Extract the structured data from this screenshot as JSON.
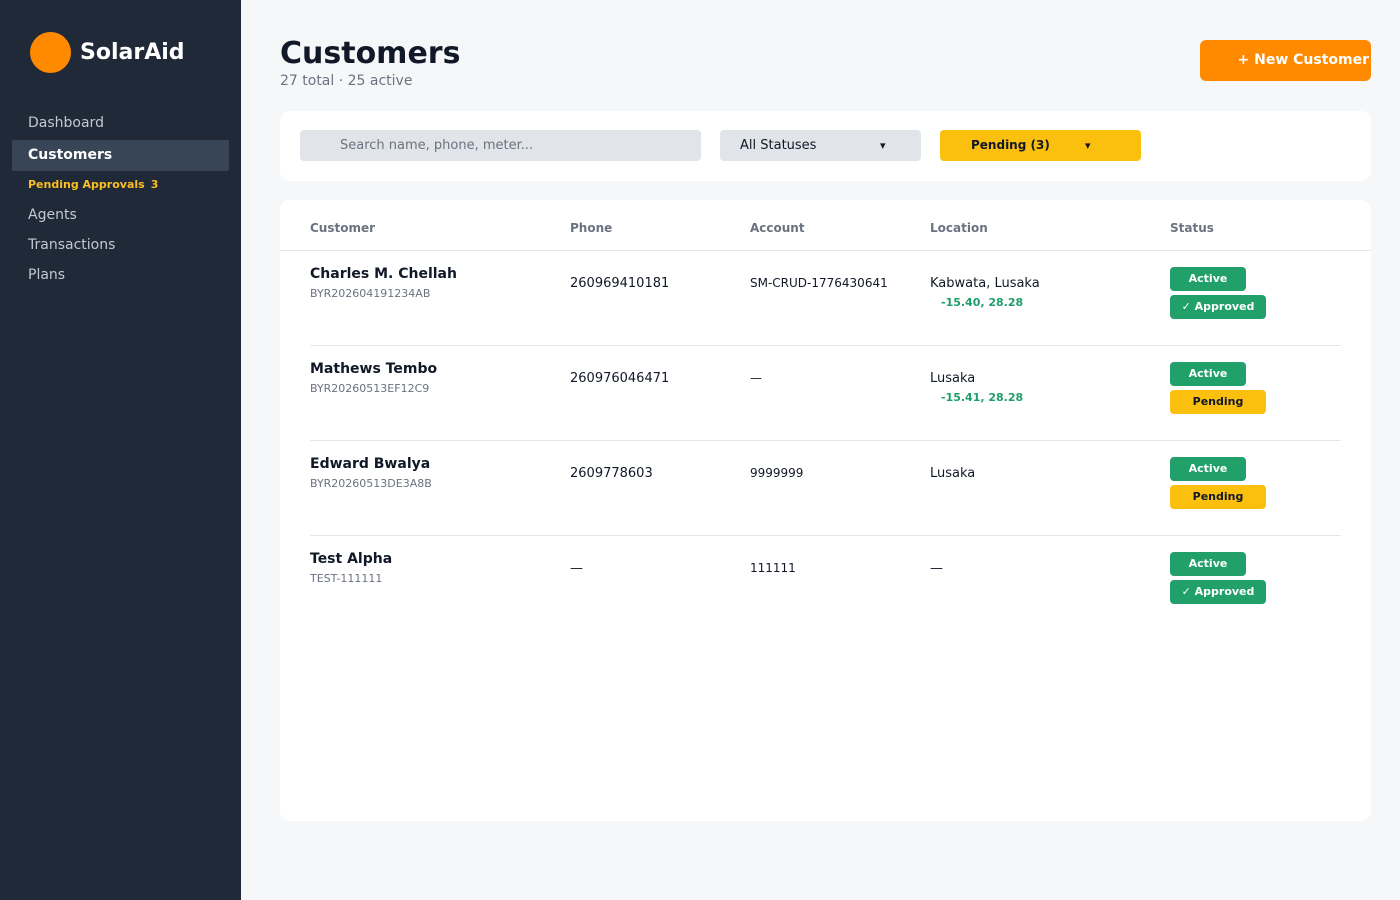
{
  "brand": {
    "name": "SolarAid",
    "accent": "#ff8a00"
  },
  "sidebar": {
    "items": [
      {
        "label": "Dashboard"
      },
      {
        "label": "Customers"
      },
      {
        "label": "Pending Approvals",
        "count": "3"
      },
      {
        "label": "Agents"
      },
      {
        "label": "Transactions"
      },
      {
        "label": "Plans"
      }
    ],
    "active": "Customers"
  },
  "header": {
    "title": "Customers",
    "subtitle": "27 total · 25 active",
    "new_button": "+ New Customer"
  },
  "filters": {
    "search_placeholder": "Search name, phone, meter...",
    "status_value": "All Statuses",
    "pending_value": "Pending (3)",
    "caret": "▾"
  },
  "table": {
    "columns": [
      "Customer",
      "Phone",
      "Account",
      "Location",
      "Status"
    ],
    "rows": [
      {
        "name": "Charles M. Chellah",
        "code": "BYR202604191234AB",
        "phone": "260969410181",
        "account": "SM-CRUD-1776430641",
        "location": "Kabwata, Lusaka",
        "coords": "-15.40, 28.28",
        "status": "Active",
        "approval": "✓ Approved"
      },
      {
        "name": "Mathews Tembo",
        "code": "BYR20260513EF12C9",
        "phone": "260976046471",
        "account": "—",
        "location": "Lusaka",
        "coords": "-15.41, 28.28",
        "status": "Active",
        "approval": "Pending"
      },
      {
        "name": "Edward Bwalya",
        "code": "BYR20260513DE3A8B",
        "phone": "2609778603",
        "account": "9999999",
        "location": "Lusaka",
        "coords": "",
        "status": "Active",
        "approval": "Pending"
      },
      {
        "name": "Test Alpha",
        "code": "TEST-111111",
        "phone": "—",
        "account": "111111",
        "location": "—",
        "coords": "",
        "status": "Active",
        "approval": "✓ Approved"
      }
    ]
  }
}
